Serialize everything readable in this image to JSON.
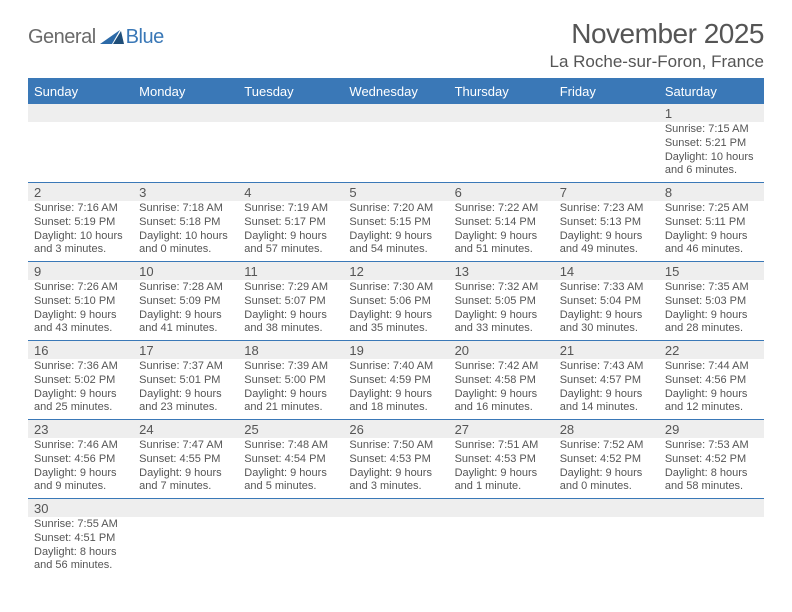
{
  "logo": {
    "text1": "General",
    "text2": "Blue"
  },
  "header": {
    "month_title": "November 2025",
    "location": "La Roche-sur-Foron, France"
  },
  "colors": {
    "header_blue": "#3a78b7",
    "grey_bg": "#eeeeee",
    "text": "#555555"
  },
  "weekdays": [
    "Sunday",
    "Monday",
    "Tuesday",
    "Wednesday",
    "Thursday",
    "Friday",
    "Saturday"
  ],
  "weeks": [
    {
      "daynums": [
        "",
        "",
        "",
        "",
        "",
        "",
        "1"
      ],
      "cells": [
        null,
        null,
        null,
        null,
        null,
        null,
        {
          "sunrise": "Sunrise: 7:15 AM",
          "sunset": "Sunset: 5:21 PM",
          "daylight": "Daylight: 10 hours and 6 minutes."
        }
      ]
    },
    {
      "daynums": [
        "2",
        "3",
        "4",
        "5",
        "6",
        "7",
        "8"
      ],
      "cells": [
        {
          "sunrise": "Sunrise: 7:16 AM",
          "sunset": "Sunset: 5:19 PM",
          "daylight": "Daylight: 10 hours and 3 minutes."
        },
        {
          "sunrise": "Sunrise: 7:18 AM",
          "sunset": "Sunset: 5:18 PM",
          "daylight": "Daylight: 10 hours and 0 minutes."
        },
        {
          "sunrise": "Sunrise: 7:19 AM",
          "sunset": "Sunset: 5:17 PM",
          "daylight": "Daylight: 9 hours and 57 minutes."
        },
        {
          "sunrise": "Sunrise: 7:20 AM",
          "sunset": "Sunset: 5:15 PM",
          "daylight": "Daylight: 9 hours and 54 minutes."
        },
        {
          "sunrise": "Sunrise: 7:22 AM",
          "sunset": "Sunset: 5:14 PM",
          "daylight": "Daylight: 9 hours and 51 minutes."
        },
        {
          "sunrise": "Sunrise: 7:23 AM",
          "sunset": "Sunset: 5:13 PM",
          "daylight": "Daylight: 9 hours and 49 minutes."
        },
        {
          "sunrise": "Sunrise: 7:25 AM",
          "sunset": "Sunset: 5:11 PM",
          "daylight": "Daylight: 9 hours and 46 minutes."
        }
      ]
    },
    {
      "daynums": [
        "9",
        "10",
        "11",
        "12",
        "13",
        "14",
        "15"
      ],
      "cells": [
        {
          "sunrise": "Sunrise: 7:26 AM",
          "sunset": "Sunset: 5:10 PM",
          "daylight": "Daylight: 9 hours and 43 minutes."
        },
        {
          "sunrise": "Sunrise: 7:28 AM",
          "sunset": "Sunset: 5:09 PM",
          "daylight": "Daylight: 9 hours and 41 minutes."
        },
        {
          "sunrise": "Sunrise: 7:29 AM",
          "sunset": "Sunset: 5:07 PM",
          "daylight": "Daylight: 9 hours and 38 minutes."
        },
        {
          "sunrise": "Sunrise: 7:30 AM",
          "sunset": "Sunset: 5:06 PM",
          "daylight": "Daylight: 9 hours and 35 minutes."
        },
        {
          "sunrise": "Sunrise: 7:32 AM",
          "sunset": "Sunset: 5:05 PM",
          "daylight": "Daylight: 9 hours and 33 minutes."
        },
        {
          "sunrise": "Sunrise: 7:33 AM",
          "sunset": "Sunset: 5:04 PM",
          "daylight": "Daylight: 9 hours and 30 minutes."
        },
        {
          "sunrise": "Sunrise: 7:35 AM",
          "sunset": "Sunset: 5:03 PM",
          "daylight": "Daylight: 9 hours and 28 minutes."
        }
      ]
    },
    {
      "daynums": [
        "16",
        "17",
        "18",
        "19",
        "20",
        "21",
        "22"
      ],
      "cells": [
        {
          "sunrise": "Sunrise: 7:36 AM",
          "sunset": "Sunset: 5:02 PM",
          "daylight": "Daylight: 9 hours and 25 minutes."
        },
        {
          "sunrise": "Sunrise: 7:37 AM",
          "sunset": "Sunset: 5:01 PM",
          "daylight": "Daylight: 9 hours and 23 minutes."
        },
        {
          "sunrise": "Sunrise: 7:39 AM",
          "sunset": "Sunset: 5:00 PM",
          "daylight": "Daylight: 9 hours and 21 minutes."
        },
        {
          "sunrise": "Sunrise: 7:40 AM",
          "sunset": "Sunset: 4:59 PM",
          "daylight": "Daylight: 9 hours and 18 minutes."
        },
        {
          "sunrise": "Sunrise: 7:42 AM",
          "sunset": "Sunset: 4:58 PM",
          "daylight": "Daylight: 9 hours and 16 minutes."
        },
        {
          "sunrise": "Sunrise: 7:43 AM",
          "sunset": "Sunset: 4:57 PM",
          "daylight": "Daylight: 9 hours and 14 minutes."
        },
        {
          "sunrise": "Sunrise: 7:44 AM",
          "sunset": "Sunset: 4:56 PM",
          "daylight": "Daylight: 9 hours and 12 minutes."
        }
      ]
    },
    {
      "daynums": [
        "23",
        "24",
        "25",
        "26",
        "27",
        "28",
        "29"
      ],
      "cells": [
        {
          "sunrise": "Sunrise: 7:46 AM",
          "sunset": "Sunset: 4:56 PM",
          "daylight": "Daylight: 9 hours and 9 minutes."
        },
        {
          "sunrise": "Sunrise: 7:47 AM",
          "sunset": "Sunset: 4:55 PM",
          "daylight": "Daylight: 9 hours and 7 minutes."
        },
        {
          "sunrise": "Sunrise: 7:48 AM",
          "sunset": "Sunset: 4:54 PM",
          "daylight": "Daylight: 9 hours and 5 minutes."
        },
        {
          "sunrise": "Sunrise: 7:50 AM",
          "sunset": "Sunset: 4:53 PM",
          "daylight": "Daylight: 9 hours and 3 minutes."
        },
        {
          "sunrise": "Sunrise: 7:51 AM",
          "sunset": "Sunset: 4:53 PM",
          "daylight": "Daylight: 9 hours and 1 minute."
        },
        {
          "sunrise": "Sunrise: 7:52 AM",
          "sunset": "Sunset: 4:52 PM",
          "daylight": "Daylight: 9 hours and 0 minutes."
        },
        {
          "sunrise": "Sunrise: 7:53 AM",
          "sunset": "Sunset: 4:52 PM",
          "daylight": "Daylight: 8 hours and 58 minutes."
        }
      ]
    },
    {
      "daynums": [
        "30",
        "",
        "",
        "",
        "",
        "",
        ""
      ],
      "cells": [
        {
          "sunrise": "Sunrise: 7:55 AM",
          "sunset": "Sunset: 4:51 PM",
          "daylight": "Daylight: 8 hours and 56 minutes."
        },
        null,
        null,
        null,
        null,
        null,
        null
      ]
    }
  ]
}
